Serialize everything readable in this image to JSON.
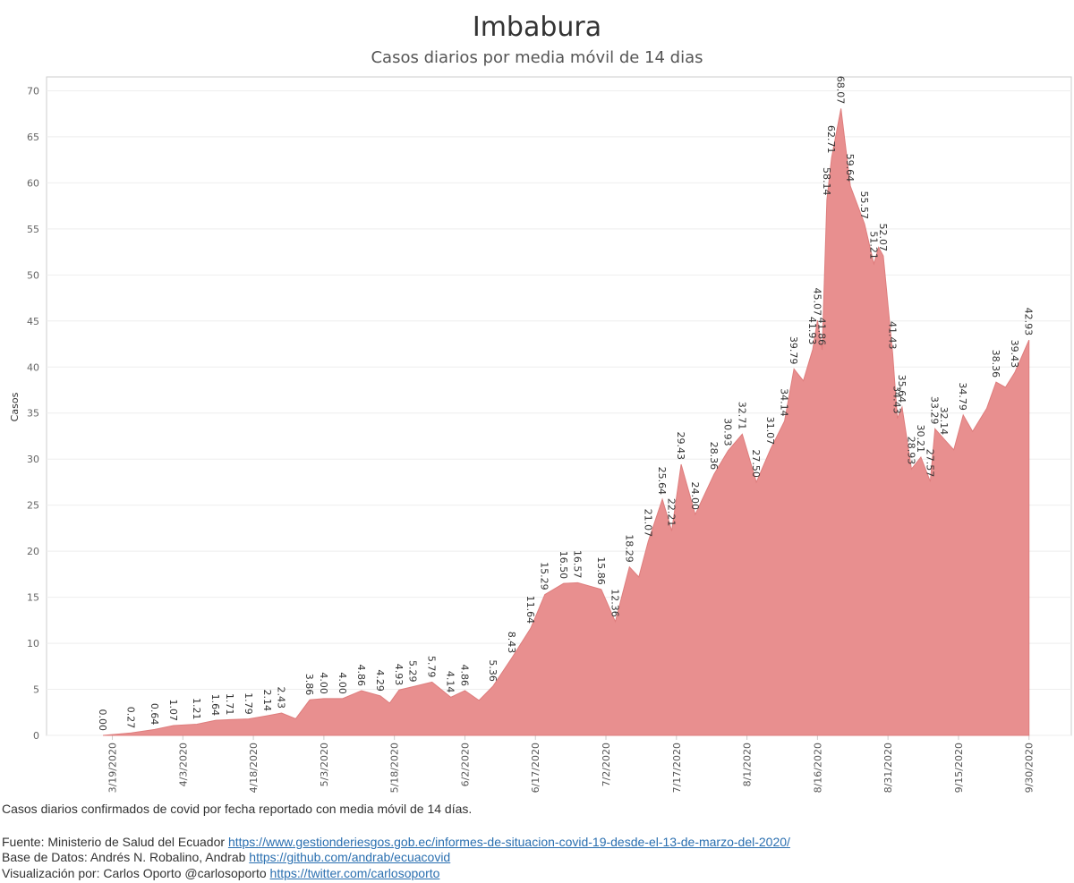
{
  "chart_data": {
    "type": "area",
    "title": "Imbabura",
    "subtitle": "Casos diarios por media móvil de 14 dias",
    "y_label": "Casos",
    "color": "#e88f8f",
    "grid": true,
    "xlim": [
      "3/5/2020",
      "10/9/2020"
    ],
    "xticks": [
      "3/19/2020",
      "4/3/2020",
      "4/18/2020",
      "5/3/2020",
      "5/18/2020",
      "6/2/2020",
      "6/17/2020",
      "7/2/2020",
      "7/17/2020",
      "8/1/2020",
      "8/16/2020",
      "8/31/2020",
      "9/15/2020",
      "9/30/2020"
    ],
    "ylim": [
      0,
      71.5
    ],
    "yticks": [
      0,
      5,
      10,
      15,
      20,
      25,
      30,
      35,
      40,
      45,
      50,
      55,
      60,
      65,
      70
    ],
    "x": [
      "3/17/2020",
      "3/23/2020",
      "3/28/2020",
      "4/1/2020",
      "4/6/2020",
      "4/10/2020",
      "4/13/2020",
      "4/17/2020",
      "4/21/2020",
      "4/24/2020",
      "4/27/2020",
      "4/30/2020",
      "5/3/2020",
      "5/7/2020",
      "5/11/2020",
      "5/15/2020",
      "5/17/2020",
      "5/19/2020",
      "5/22/2020",
      "5/26/2020",
      "5/30/2020",
      "6/2/2020",
      "6/5/2020",
      "6/8/2020",
      "6/12/2020",
      "6/16/2020",
      "6/19/2020",
      "6/23/2020",
      "6/26/2020",
      "7/1/2020",
      "7/4/2020",
      "7/7/2020",
      "7/9/2020",
      "7/11/2020",
      "7/14/2020",
      "7/16/2020",
      "7/18/2020",
      "7/21/2020",
      "7/25/2020",
      "7/28/2020",
      "7/31/2020",
      "8/3/2020",
      "8/6/2020",
      "8/9/2020",
      "8/11/2020",
      "8/13/2020",
      "8/15/2020",
      "8/16/2020",
      "8/17/2020",
      "8/18/2020",
      "8/19/2020",
      "8/21/2020",
      "8/23/2020",
      "8/26/2020",
      "8/28/2020",
      "8/29/2020",
      "8/30/2020",
      "9/1/2020",
      "9/2/2020",
      "9/3/2020",
      "9/5/2020",
      "9/7/2020",
      "9/9/2020",
      "9/10/2020",
      "9/12/2020",
      "9/14/2020",
      "9/16/2020",
      "9/18/2020",
      "9/21/2020",
      "9/23/2020",
      "9/25/2020",
      "9/27/2020",
      "9/30/2020"
    ],
    "series": [
      {
        "name": "Casos",
        "values": [
          0,
          0.27,
          0.64,
          1.07,
          1.21,
          1.64,
          1.71,
          1.79,
          2.14,
          2.43,
          1.8,
          3.86,
          4,
          4,
          4.86,
          4.29,
          3.5,
          4.93,
          5.29,
          5.79,
          4.14,
          4.86,
          3.8,
          5.36,
          8.43,
          11.64,
          15.29,
          16.5,
          16.57,
          15.86,
          12.36,
          18.29,
          17.2,
          21.07,
          25.64,
          22.21,
          29.43,
          24,
          28.36,
          30.93,
          32.71,
          27.5,
          31.07,
          34.14,
          39.79,
          38.5,
          41.93,
          45.07,
          41.86,
          58.14,
          62.71,
          68.07,
          59.64,
          55.57,
          51.21,
          53,
          52.07,
          41.43,
          34.43,
          35.64,
          28.93,
          30.21,
          27.57,
          33.29,
          32.14,
          31,
          34.79,
          33,
          35.5,
          38.36,
          37.8,
          39.43,
          42.93
        ],
        "value_labels": [
          "0.00",
          "0.27",
          "0.64",
          "1.07",
          "1.21",
          "1.64",
          "1.71",
          "1.79",
          "2.14",
          "2.43",
          null,
          "3.86",
          "4.00",
          "4.00",
          "4.86",
          "4.29",
          null,
          "4.93",
          "5.29",
          "5.79",
          "4.14",
          "4.86",
          null,
          "5.36",
          "8.43",
          "11.64",
          "15.29",
          "16.50",
          "16.57",
          "15.86",
          "12.36",
          "18.29",
          null,
          "21.07",
          "25.64",
          "22.21",
          "29.43",
          "24.00",
          "28.36",
          "30.93",
          "32.71",
          "27.50",
          "31.07",
          "34.14",
          "39.79",
          null,
          "41.93",
          "45.07",
          "41.86",
          "58.14",
          "62.71",
          "68.07",
          "59.64",
          "55.57",
          "51.21",
          null,
          "52.07",
          "41.43",
          "34.43",
          "35.64",
          "28.93",
          "30.21",
          "27.57",
          "33.29",
          "32.14",
          null,
          "34.79",
          null,
          null,
          "38.36",
          null,
          "39.43",
          "42.93"
        ]
      }
    ]
  },
  "footer": {
    "note": "Casos diarios confirmados de covid por fecha reportado con media móvil de 14 días.",
    "sources": [
      {
        "label": "Fuente: Ministerio de Salud del Ecuador",
        "url": "https://www.gestionderiesgos.gob.ec/informes-de-situacion-covid-19-desde-el-13-de-marzo-del-2020/"
      },
      {
        "label": "Base de Datos: Andrés N. Robalino, Andrab",
        "url": "https://github.com/andrab/ecuacovid"
      },
      {
        "label": "Visualización por: Carlos Oporto @carlosoporto",
        "url": "https://twitter.com/carlosoporto"
      }
    ]
  }
}
